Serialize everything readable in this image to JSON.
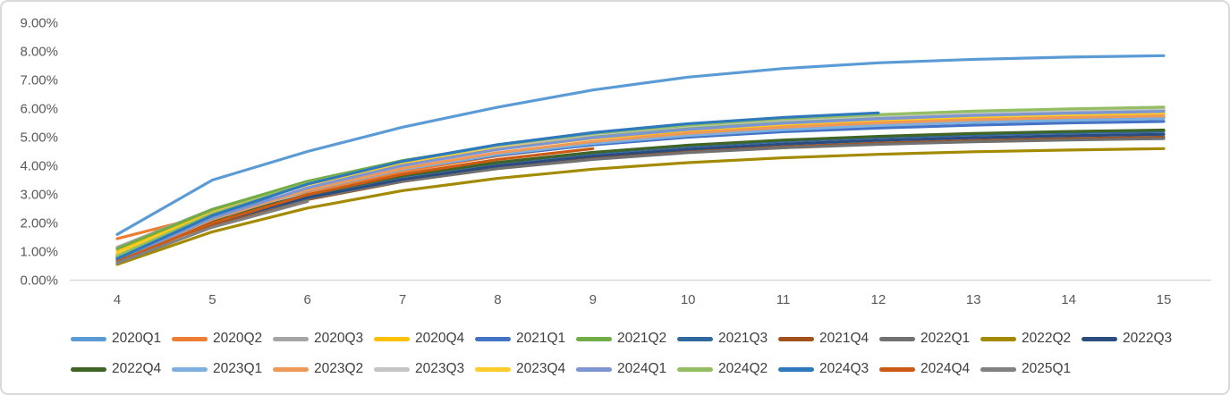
{
  "colors": {
    "background": "#FFFFFF",
    "panel_border": "#D9D9D9",
    "axis_line": "#D9D9D9",
    "tick_text": "#595959",
    "legend_text": "#404040"
  },
  "chart_data": {
    "type": "line",
    "title": "",
    "xlabel": "",
    "ylabel": "",
    "grid": false,
    "legend_position": "bottom",
    "legend_rows": [
      11,
      10
    ],
    "x_categories": [
      "4",
      "5",
      "6",
      "7",
      "8",
      "9",
      "10",
      "11",
      "12",
      "13",
      "14",
      "15"
    ],
    "y_axis": {
      "min": 0,
      "max": 9,
      "step": 1,
      "tick_labels": [
        "0.00%",
        "1.00%",
        "2.00%",
        "3.00%",
        "4.00%",
        "5.00%",
        "6.00%",
        "7.00%",
        "8.00%",
        "9.00%"
      ]
    },
    "series": [
      {
        "name": "2020Q1",
        "color": "#5B9BD5",
        "values": [
          1.6,
          3.5,
          4.5,
          5.35,
          6.05,
          6.65,
          7.1,
          7.4,
          7.6,
          7.72,
          7.8,
          7.85
        ]
      },
      {
        "name": "2020Q2",
        "color": "#ED7D31",
        "values": [
          1.45,
          2.3,
          3.1,
          3.8,
          4.35,
          4.75,
          5.05,
          5.3,
          5.45,
          5.58,
          5.65,
          5.7
        ]
      },
      {
        "name": "2020Q3",
        "color": "#A5A5A5",
        "values": [
          1.15,
          2.48,
          3.44,
          4.14,
          4.65,
          5.02,
          5.28,
          5.48,
          5.62,
          5.72,
          5.8,
          5.85
        ]
      },
      {
        "name": "2020Q4",
        "color": "#FFC000",
        "values": [
          1.05,
          2.39,
          3.36,
          4.07,
          4.58,
          4.96,
          5.23,
          5.42,
          5.57,
          5.67,
          5.75,
          5.8
        ]
      },
      {
        "name": "2021Q1",
        "color": "#4472C4",
        "values": [
          0.95,
          2.25,
          3.19,
          3.88,
          4.37,
          4.73,
          5.0,
          5.19,
          5.32,
          5.42,
          5.5,
          5.55
        ]
      },
      {
        "name": "2021Q2",
        "color": "#70AD47",
        "values": [
          1.1,
          2.47,
          3.46,
          4.18,
          4.71,
          5.09,
          5.37,
          5.57,
          5.71,
          5.82,
          5.89,
          5.95
        ]
      },
      {
        "name": "2021Q3",
        "color": "#31699E",
        "values": [
          0.9,
          2.11,
          2.99,
          3.63,
          4.1,
          4.44,
          4.68,
          4.86,
          4.99,
          5.08,
          5.15,
          5.2
        ]
      },
      {
        "name": "2021Q4",
        "color": "#A0511C",
        "values": [
          0.75,
          1.95,
          2.82,
          3.45,
          3.91,
          4.25,
          4.49,
          4.66,
          4.79,
          4.88,
          4.95,
          5.0
        ]
      },
      {
        "name": "2022Q1",
        "color": "#717171",
        "values": [
          0.85,
          2.01,
          2.85,
          3.46,
          3.9,
          4.22,
          4.46,
          4.63,
          4.75,
          4.84,
          4.9,
          4.95
        ]
      },
      {
        "name": "2022Q2",
        "color": "#A38A00",
        "values": [
          0.55,
          1.69,
          2.52,
          3.13,
          3.56,
          3.88,
          4.11,
          4.28,
          4.4,
          4.49,
          4.55,
          4.6
        ]
      },
      {
        "name": "2022Q3",
        "color": "#2B4C7E",
        "values": [
          0.8,
          2.01,
          2.89,
          3.53,
          4.0,
          4.34,
          4.58,
          4.76,
          4.89,
          4.98,
          5.05,
          5.1
        ]
      },
      {
        "name": "2022Q4",
        "color": "#3F6425",
        "values": [
          0.85,
          2.09,
          2.99,
          3.65,
          4.12,
          4.47,
          4.72,
          4.9,
          5.03,
          5.13,
          5.2,
          5.25
        ]
      },
      {
        "name": "2023Q1",
        "color": "#7EB0DF",
        "values": [
          0.75,
          2.13,
          3.14,
          3.87,
          4.4,
          4.78,
          5.06,
          5.26,
          5.41,
          5.52,
          5.59,
          5.65
        ]
      },
      {
        "name": "2023Q2",
        "color": "#EF9959",
        "values": [
          0.7,
          2.13,
          3.16,
          3.91,
          4.46,
          4.85,
          5.14,
          5.35,
          5.5,
          5.61,
          5.69,
          5.75
        ]
      },
      {
        "name": "2023Q3",
        "color": "#C4C4C4",
        "values": [
          0.9,
          2.34,
          3.38,
          4.14,
          4.69,
          5.1,
          5.39,
          5.6,
          5.75,
          5.86,
          5.94,
          6.0
        ]
      },
      {
        "name": "2023Q4",
        "color": "#FFCC29",
        "values": [
          0.95,
          2.33,
          3.34,
          4.07,
          4.6,
          4.98,
          5.26,
          5.46,
          5.61,
          5.72,
          5.79,
          5.85
        ]
      },
      {
        "name": "2024Q1",
        "color": "#7D96D2",
        "values": [
          0.7,
          2.17,
          3.23,
          4.01,
          4.57,
          4.98,
          5.27,
          5.49,
          5.64,
          5.76,
          5.84,
          5.9
        ]
      },
      {
        "name": "2024Q2",
        "color": "#93BF62",
        "values": [
          0.85,
          2.32,
          3.38,
          4.16,
          4.72,
          5.13,
          5.42,
          5.64,
          5.79,
          5.91,
          5.99,
          6.05
        ]
      },
      {
        "name": "2024Q3",
        "color": "#2E79BC",
        "values": [
          0.75,
          2.26,
          3.36,
          4.16,
          4.74,
          5.16,
          5.47,
          5.69,
          5.85,
          null,
          null,
          null
        ]
      },
      {
        "name": "2024Q4",
        "color": "#CA5A14",
        "values": [
          0.65,
          2.0,
          2.99,
          3.7,
          4.22,
          4.6,
          null,
          null,
          null,
          null,
          null,
          null
        ]
      },
      {
        "name": "2025Q1",
        "color": "#808080",
        "values": [
          0.6,
          1.85,
          2.75,
          null,
          null,
          null,
          null,
          null,
          null,
          null,
          null,
          null
        ]
      }
    ]
  }
}
